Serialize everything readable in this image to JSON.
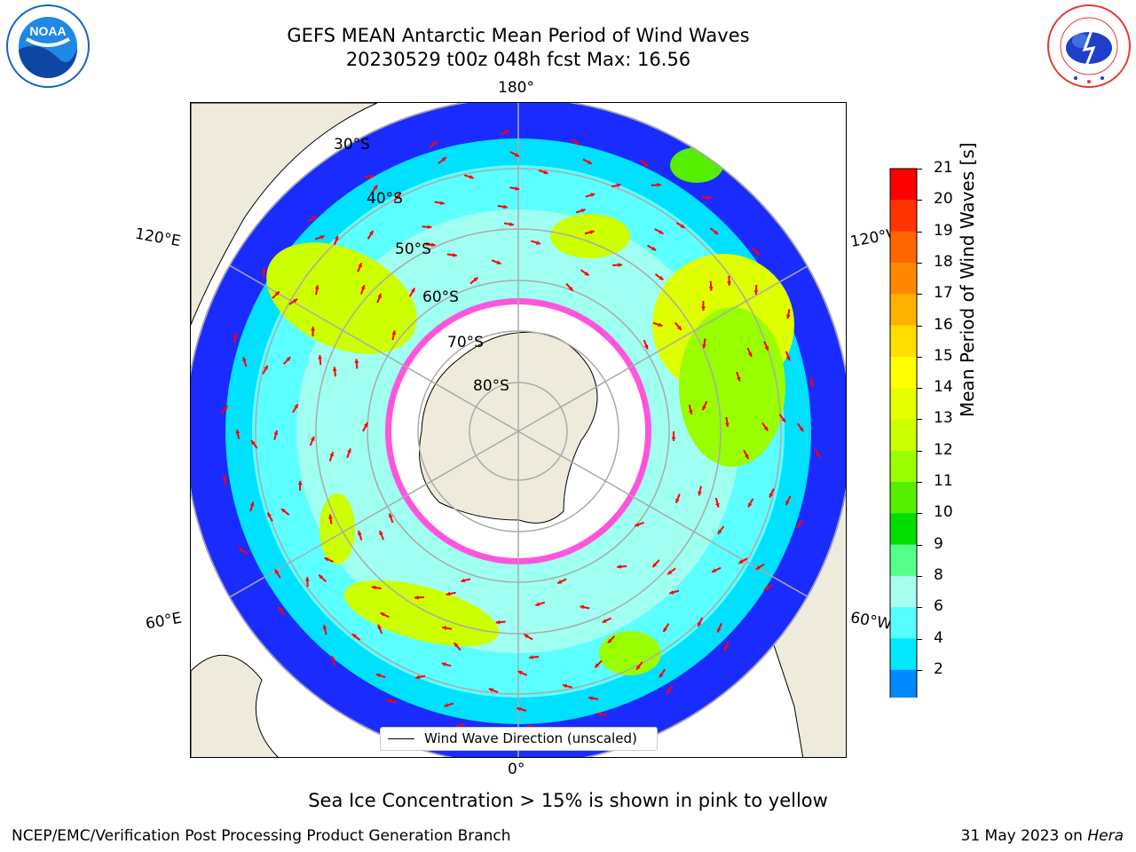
{
  "title_line1": "GEFS MEAN Antarctic Mean Period of Wind Waves",
  "title_line2": "20230529 t00z 048h fcst   Max: 16.56",
  "logos": {
    "left": {
      "text": "NOAA",
      "ring_text": "NATIONAL OCEANIC AND ATMOSPHERIC ADMINISTRATION • U.S. DEPARTMENT OF COMMERCE",
      "color": "#1565c0"
    },
    "right": {
      "ring_text": "NATIONAL WEATHER SERVICE",
      "color": "#e53935"
    }
  },
  "map": {
    "projection": "south polar stereographic",
    "lon_labels": {
      "top": "180°",
      "bottom": "0°",
      "upper_left": "120°E",
      "upper_right": "120°W",
      "lower_left": "60°E",
      "lower_right": "60°W"
    },
    "lat_labels": [
      "30°S",
      "40°S",
      "50°S",
      "60°S",
      "70°S",
      "80°S"
    ],
    "legend": "Wind Wave Direction (unscaled)",
    "land_color": "#efebdc",
    "arrow_color": "#ff0000"
  },
  "colorbar": {
    "label": "Mean Period of Wind Waves [s]",
    "ticks": [
      "21",
      "20",
      "19",
      "18",
      "17",
      "16",
      "15",
      "14",
      "13",
      "12",
      "11",
      "10",
      "9",
      "8",
      "6",
      "4",
      "2"
    ],
    "colors": [
      "#ff0000",
      "#ff3300",
      "#ff6600",
      "#ff8800",
      "#ffb000",
      "#ffdd00",
      "#ffff00",
      "#e6ff00",
      "#ccff00",
      "#99ff00",
      "#55ee00",
      "#00dd00",
      "#55ff88",
      "#aaffee",
      "#55ffff",
      "#00e8ff",
      "#0088ff"
    ],
    "extend_color": "#0000ff"
  },
  "sea_ice_note": "Sea Ice Concentration > 15% is shown in pink to yellow",
  "credit": "NCEP/EMC/Verification Post Processing Product Generation Branch",
  "date_prefix": "31 May 2023 on ",
  "date_host": "Hera"
}
